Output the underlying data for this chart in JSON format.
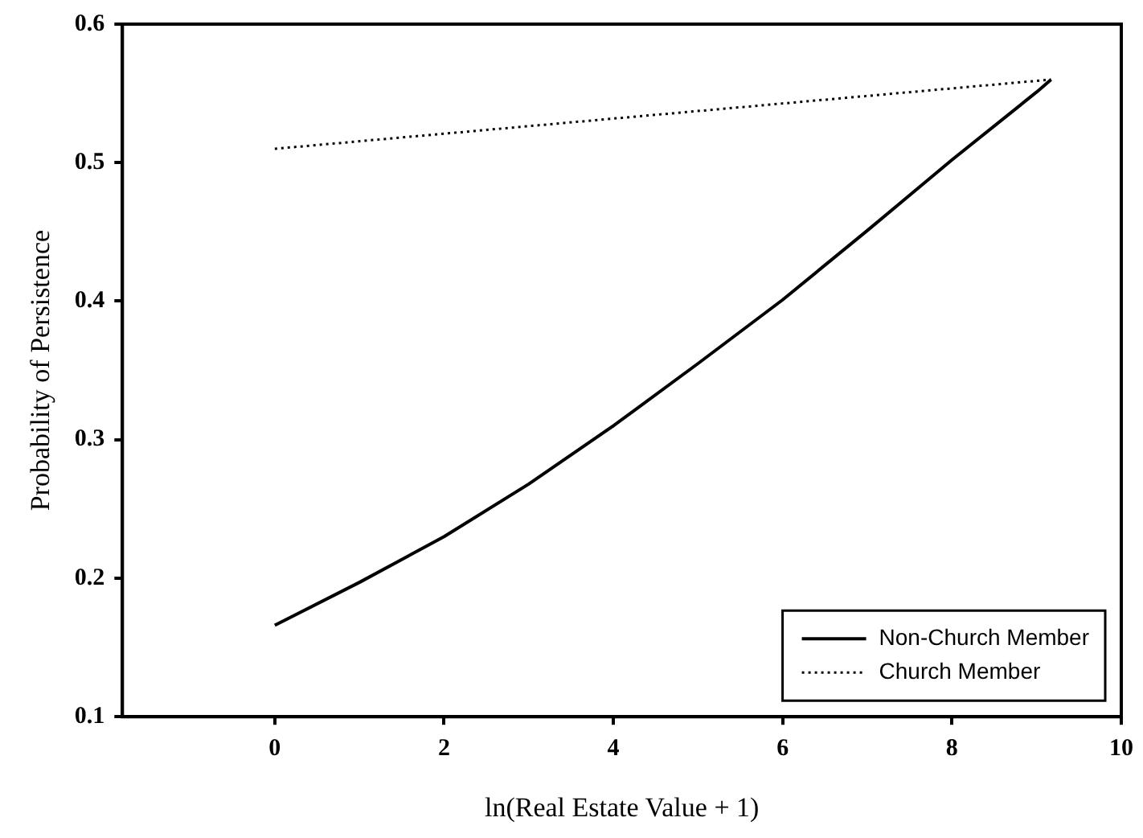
{
  "chart_data": {
    "type": "line",
    "xlabel": "ln(Real Estate Value + 1)",
    "ylabel": "Probability of Persistence",
    "xlim": [
      -1.8,
      10
    ],
    "xticks": [
      0,
      2,
      4,
      6,
      8,
      10
    ],
    "ylim": [
      0.1,
      0.6
    ],
    "yticks": [
      0.1,
      0.2,
      0.3,
      0.4,
      0.5,
      0.6
    ],
    "grid": false,
    "legend": "bottom right",
    "marker": "none",
    "series": [
      {
        "name": "Non-Church Member",
        "color": "#000000",
        "line_style": "solid",
        "x": [
          0,
          1,
          2,
          3,
          4,
          5,
          6,
          7,
          8,
          9,
          9.17
        ],
        "values": [
          0.166,
          0.197,
          0.23,
          0.268,
          0.31,
          0.355,
          0.401,
          0.451,
          0.502,
          0.551,
          0.56
        ]
      },
      {
        "name": "Church Member",
        "color": "#000000",
        "line_style": "dotted",
        "x": [
          0,
          9.17
        ],
        "values": [
          0.51,
          0.56
        ]
      }
    ]
  }
}
